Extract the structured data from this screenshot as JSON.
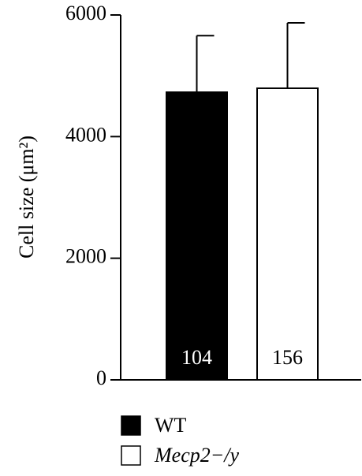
{
  "chart_data": {
    "type": "bar",
    "y_label": "Cell size (μm²)",
    "ylim": [
      0,
      6000
    ],
    "yticks": [
      0,
      2000,
      4000,
      6000
    ],
    "series": [
      {
        "name": "WT",
        "color": "#000000",
        "values": [
          4730
        ],
        "errors": [
          930
        ],
        "annotations": [
          "104"
        ]
      },
      {
        "name": "Mecp2−/y",
        "color": "#ffffff",
        "values": [
          4795
        ],
        "errors": [
          1075
        ],
        "annotations": [
          "156"
        ]
      }
    ]
  }
}
